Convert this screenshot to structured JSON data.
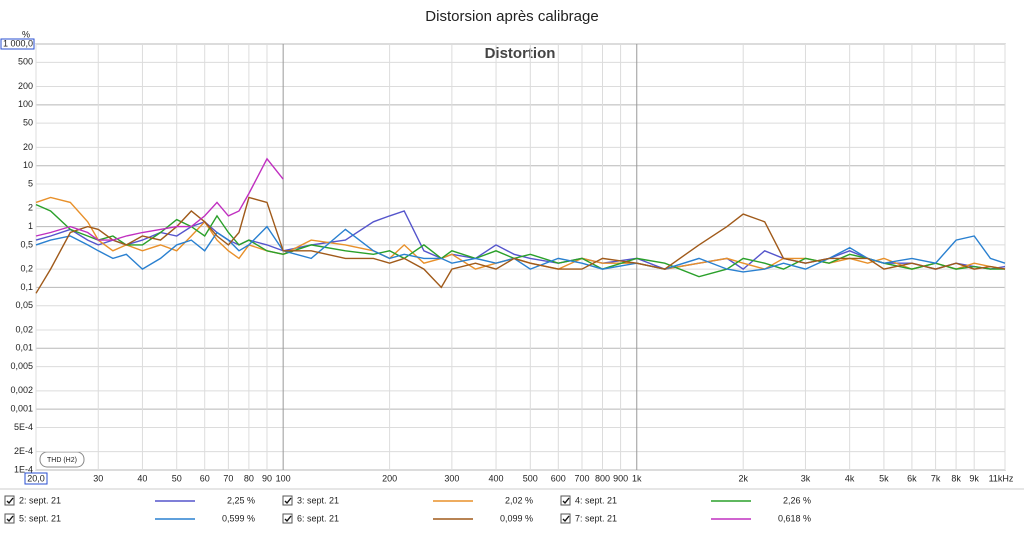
{
  "chart_data": {
    "type": "line",
    "title": "Distorsion après calibrage",
    "plot_title": "Distortion",
    "badge": "THD (H2)",
    "y_unit": "%",
    "xscale": "log",
    "yscale": "log",
    "grid": true,
    "xlim": [
      20,
      11000
    ],
    "ylim": [
      0.0001,
      1000
    ],
    "xticks": [
      {
        "value": 20,
        "label": "20,0"
      },
      30,
      40,
      50,
      60,
      70,
      80,
      90,
      100,
      200,
      300,
      400,
      500,
      600,
      700,
      800,
      900,
      {
        "value": 1000,
        "label": "1k"
      },
      {
        "value": 2000,
        "label": "2k"
      },
      {
        "value": 3000,
        "label": "3k"
      },
      {
        "value": 4000,
        "label": "4k"
      },
      {
        "value": 5000,
        "label": "5k"
      },
      {
        "value": 6000,
        "label": "6k"
      },
      {
        "value": 7000,
        "label": "7k"
      },
      {
        "value": 8000,
        "label": "8k"
      },
      {
        "value": 9000,
        "label": "9k"
      },
      {
        "value": 11000,
        "label": "11kHz"
      }
    ],
    "yticks": [
      {
        "value": 1000,
        "label": "1 000,0"
      },
      500,
      200,
      100,
      50,
      20,
      10,
      5,
      2,
      1,
      {
        "value": 0.5,
        "label": "0,5"
      },
      {
        "value": 0.2,
        "label": "0,2"
      },
      {
        "value": 0.1,
        "label": "0,1"
      },
      {
        "value": 0.05,
        "label": "0,05"
      },
      {
        "value": 0.02,
        "label": "0,02"
      },
      {
        "value": 0.01,
        "label": "0,01"
      },
      {
        "value": 0.005,
        "label": "0,005"
      },
      {
        "value": 0.002,
        "label": "0,002"
      },
      {
        "value": 0.001,
        "label": "0,001"
      },
      {
        "value": 0.0005,
        "label": "5E-4"
      },
      {
        "value": 0.0002,
        "label": "2E-4"
      },
      {
        "value": 0.0001,
        "label": "1E-4"
      }
    ],
    "x": [
      20,
      22,
      25,
      28,
      30,
      33,
      36,
      40,
      45,
      50,
      55,
      60,
      65,
      70,
      75,
      80,
      90,
      100,
      120,
      150,
      180,
      200,
      220,
      250,
      280,
      300,
      350,
      400,
      450,
      500,
      600,
      700,
      800,
      1000,
      1200,
      1500,
      1800,
      2000,
      2300,
      2600,
      3000,
      3500,
      4000,
      4500,
      5000,
      6000,
      7000,
      8000,
      9000,
      10000,
      11000
    ],
    "series": [
      {
        "name": "2: sept. 21",
        "color": "#5555cc",
        "legend_value": 2.25,
        "legend_value_label": "2,25 %",
        "values": [
          0.6,
          0.7,
          0.9,
          0.6,
          0.5,
          0.6,
          0.5,
          0.6,
          0.8,
          0.7,
          1.0,
          1.2,
          0.8,
          0.6,
          0.5,
          0.6,
          0.5,
          0.4,
          0.5,
          0.6,
          1.2,
          1.5,
          1.8,
          0.4,
          0.3,
          0.35,
          0.3,
          0.5,
          0.35,
          0.3,
          0.25,
          0.3,
          0.25,
          0.3,
          0.2,
          0.25,
          0.3,
          0.2,
          0.4,
          0.3,
          0.25,
          0.3,
          0.4,
          0.3,
          0.25,
          0.25,
          0.2,
          0.25,
          0.22,
          0.2,
          0.22
        ]
      },
      {
        "name": "3: sept. 21",
        "color": "#e8902a",
        "legend_value": 2.02,
        "legend_value_label": "2,02 %",
        "values": [
          2.5,
          3.0,
          2.5,
          1.2,
          0.6,
          0.4,
          0.5,
          0.4,
          0.5,
          0.4,
          0.7,
          1.2,
          0.6,
          0.4,
          0.3,
          0.5,
          0.4,
          0.35,
          0.6,
          0.5,
          0.4,
          0.3,
          0.5,
          0.25,
          0.3,
          0.35,
          0.2,
          0.25,
          0.3,
          0.25,
          0.2,
          0.3,
          0.25,
          0.25,
          0.2,
          0.25,
          0.3,
          0.25,
          0.2,
          0.3,
          0.3,
          0.25,
          0.3,
          0.25,
          0.3,
          0.2,
          0.25,
          0.2,
          0.25,
          0.22,
          0.2
        ]
      },
      {
        "name": "4: sept. 21",
        "color": "#2aa02a",
        "legend_value": 2.26,
        "legend_value_label": "2,26 %",
        "values": [
          2.3,
          1.8,
          0.9,
          0.7,
          0.6,
          0.7,
          0.5,
          0.5,
          0.8,
          1.3,
          1.0,
          0.7,
          1.5,
          0.8,
          0.5,
          0.6,
          0.4,
          0.35,
          0.5,
          0.4,
          0.35,
          0.4,
          0.3,
          0.5,
          0.3,
          0.4,
          0.3,
          0.4,
          0.3,
          0.35,
          0.25,
          0.3,
          0.2,
          0.3,
          0.25,
          0.15,
          0.2,
          0.3,
          0.25,
          0.2,
          0.3,
          0.25,
          0.35,
          0.3,
          0.25,
          0.2,
          0.25,
          0.2,
          0.22,
          0.2,
          0.2
        ]
      },
      {
        "name": "5: sept. 21",
        "color": "#2a80d0",
        "legend_value": 0.599,
        "legend_value_label": "0,599 %",
        "values": [
          0.5,
          0.6,
          0.7,
          0.5,
          0.4,
          0.3,
          0.35,
          0.2,
          0.3,
          0.5,
          0.6,
          0.4,
          0.8,
          0.6,
          0.4,
          0.5,
          1.0,
          0.4,
          0.3,
          0.9,
          0.4,
          0.3,
          0.35,
          0.3,
          0.3,
          0.25,
          0.3,
          0.25,
          0.3,
          0.2,
          0.3,
          0.25,
          0.2,
          0.25,
          0.2,
          0.3,
          0.2,
          0.18,
          0.2,
          0.25,
          0.2,
          0.3,
          0.45,
          0.3,
          0.25,
          0.3,
          0.25,
          0.6,
          0.7,
          0.3,
          0.25
        ]
      },
      {
        "name": "6: sept. 21",
        "color": "#a05a1a",
        "legend_value": 0.099,
        "legend_value_label": "0,099 %",
        "values": [
          0.08,
          0.2,
          0.8,
          1.0,
          0.9,
          0.6,
          0.5,
          0.7,
          0.6,
          1.0,
          1.8,
          1.2,
          0.7,
          0.5,
          0.8,
          3.0,
          2.5,
          0.4,
          0.4,
          0.3,
          0.3,
          0.25,
          0.3,
          0.2,
          0.1,
          0.2,
          0.25,
          0.2,
          0.3,
          0.25,
          0.2,
          0.2,
          0.3,
          0.25,
          0.2,
          0.5,
          1.0,
          1.6,
          1.2,
          0.3,
          0.25,
          0.3,
          0.3,
          0.3,
          0.2,
          0.25,
          0.2,
          0.25,
          0.2,
          0.22,
          0.2
        ]
      },
      {
        "name": "7: sept. 21",
        "color": "#c030c0",
        "legend_value": 0.618,
        "legend_value_label": "0,618 %",
        "values": [
          0.7,
          0.8,
          1.0,
          0.8,
          0.6,
          0.6,
          0.7,
          0.8,
          0.9,
          1.0,
          1.0,
          1.5,
          2.5,
          1.5,
          1.8,
          3.5,
          13,
          6,
          null,
          null,
          null,
          null,
          null,
          null,
          null,
          null,
          null,
          null,
          null,
          null,
          null,
          null,
          null,
          null,
          null,
          null,
          null,
          null,
          null,
          null,
          null,
          null,
          null,
          null,
          null,
          null,
          null,
          null,
          null,
          null,
          null
        ]
      }
    ]
  }
}
